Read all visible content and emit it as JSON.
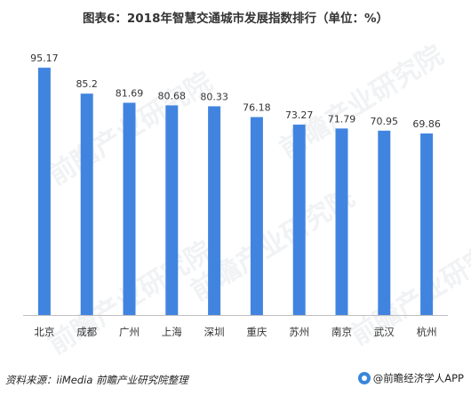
{
  "title": "图表6：2018年智慧交通城市发展指数排行（单位：%）",
  "source": "资料来源：iiMedia  前瞻产业研究院整理",
  "brand": "@前瞻经济学人APP",
  "watermark": "前瞻产业研究院",
  "colors": {
    "bar": "#4184e0",
    "text": "#333333",
    "axis": "#bfbfbf"
  },
  "chart_data": {
    "type": "bar",
    "categories": [
      "北京",
      "成都",
      "广州",
      "上海",
      "深圳",
      "重庆",
      "苏州",
      "南京",
      "武汉",
      "杭州"
    ],
    "values": [
      95.17,
      85.2,
      81.69,
      80.68,
      80.33,
      76.18,
      73.27,
      71.79,
      70.95,
      69.86
    ],
    "value_labels": [
      "95.17",
      "85.2",
      "81.69",
      "80.68",
      "80.33",
      "76.18",
      "73.27",
      "71.79",
      "70.95",
      "69.86"
    ],
    "title": "图表6：2018年智慧交通城市发展指数排行（单位：%）",
    "xlabel": "",
    "ylabel": "",
    "ylim": [
      0,
      100
    ],
    "grid": false,
    "legend": "none"
  }
}
